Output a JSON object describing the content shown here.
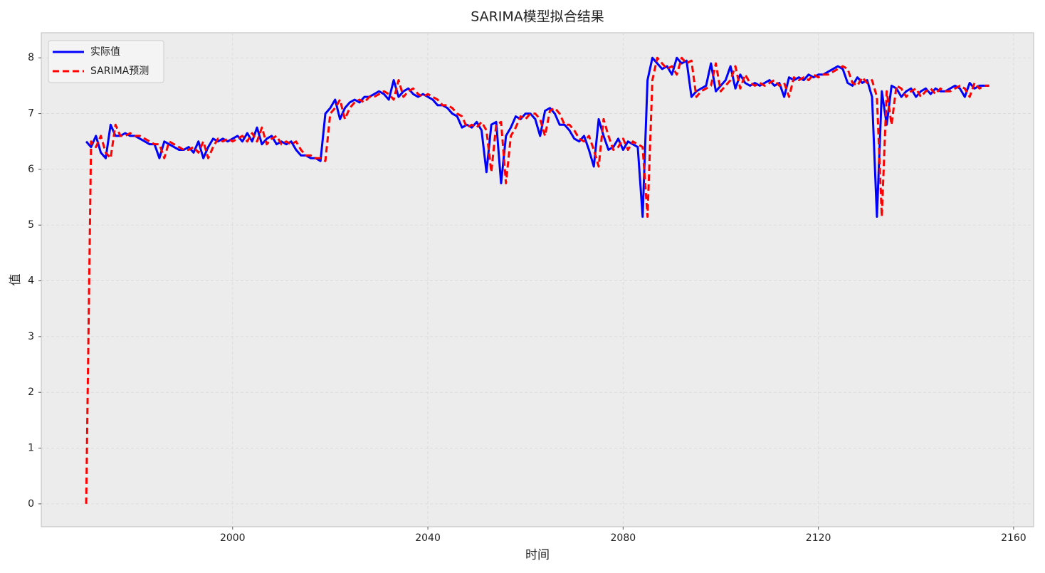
{
  "chart_data": {
    "type": "line",
    "title": "SARIMA模型拟合结果",
    "x_label": "时间",
    "y_label": "值",
    "x": [
      1970,
      1971,
      1972,
      1973,
      1974,
      1975,
      1976,
      1977,
      1978,
      1979,
      1980,
      1981,
      1982,
      1983,
      1984,
      1985,
      1986,
      1987,
      1988,
      1989,
      1990,
      1991,
      1992,
      1993,
      1994,
      1995,
      1996,
      1997,
      1998,
      1999,
      2000,
      2001,
      2002,
      2003,
      2004,
      2005,
      2006,
      2007,
      2008,
      2009,
      2010,
      2011,
      2012,
      2013,
      2014,
      2015,
      2016,
      2017,
      2018,
      2019,
      2020,
      2021,
      2022,
      2023,
      2024,
      2025,
      2026,
      2027,
      2028,
      2029,
      2030,
      2031,
      2032,
      2033,
      2034,
      2035,
      2036,
      2037,
      2038,
      2039,
      2040,
      2041,
      2042,
      2043,
      2044,
      2045,
      2046,
      2047,
      2048,
      2049,
      2050,
      2051,
      2052,
      2053,
      2054,
      2055,
      2056,
      2057,
      2058,
      2059,
      2060,
      2061,
      2062,
      2063,
      2064,
      2065,
      2066,
      2067,
      2068,
      2069,
      2070,
      2071,
      2072,
      2073,
      2074,
      2075,
      2076,
      2077,
      2078,
      2079,
      2080,
      2081,
      2082,
      2083,
      2084,
      2085,
      2086,
      2087,
      2088,
      2089,
      2090,
      2091,
      2092,
      2093,
      2094,
      2095,
      2096,
      2097,
      2098,
      2099,
      2100,
      2101,
      2102,
      2103,
      2104,
      2105,
      2106,
      2107,
      2108,
      2109,
      2110,
      2111,
      2112,
      2113,
      2114,
      2115,
      2116,
      2117,
      2118,
      2119,
      2120,
      2121,
      2122,
      2123,
      2124,
      2125,
      2126,
      2127,
      2128,
      2129,
      2130,
      2131,
      2132,
      2133,
      2134,
      2135,
      2136,
      2137,
      2138,
      2139,
      2140,
      2141,
      2142,
      2143,
      2144,
      2145,
      2146,
      2147,
      2148,
      2149,
      2150,
      2151,
      2152,
      2153,
      2154,
      2155
    ],
    "series": [
      {
        "name": "实际值",
        "color": "#0000ff",
        "dash": false,
        "values": [
          6.5,
          6.4,
          6.6,
          6.3,
          6.2,
          6.8,
          6.6,
          6.6,
          6.65,
          6.6,
          6.6,
          6.55,
          6.5,
          6.45,
          6.45,
          6.2,
          6.5,
          6.45,
          6.4,
          6.35,
          6.35,
          6.4,
          6.3,
          6.5,
          6.2,
          6.4,
          6.55,
          6.5,
          6.55,
          6.5,
          6.55,
          6.6,
          6.5,
          6.65,
          6.5,
          6.75,
          6.45,
          6.55,
          6.6,
          6.45,
          6.5,
          6.45,
          6.5,
          6.35,
          6.25,
          6.25,
          6.2,
          6.2,
          6.15,
          7.0,
          7.1,
          7.25,
          6.9,
          7.1,
          7.2,
          7.25,
          7.2,
          7.3,
          7.3,
          7.35,
          7.4,
          7.35,
          7.25,
          7.6,
          7.3,
          7.4,
          7.45,
          7.35,
          7.3,
          7.35,
          7.3,
          7.25,
          7.15,
          7.15,
          7.1,
          7.0,
          6.95,
          6.75,
          6.8,
          6.75,
          6.85,
          6.7,
          5.95,
          6.8,
          6.85,
          5.75,
          6.6,
          6.75,
          6.95,
          6.9,
          7.0,
          7.0,
          6.9,
          6.6,
          7.05,
          7.1,
          7.0,
          6.8,
          6.8,
          6.7,
          6.55,
          6.5,
          6.6,
          6.35,
          6.05,
          6.9,
          6.6,
          6.35,
          6.4,
          6.55,
          6.35,
          6.5,
          6.45,
          6.4,
          5.15,
          7.6,
          8.0,
          7.9,
          7.8,
          7.85,
          7.7,
          8.0,
          7.9,
          7.95,
          7.3,
          7.4,
          7.45,
          7.5,
          7.9,
          7.4,
          7.5,
          7.6,
          7.85,
          7.45,
          7.7,
          7.55,
          7.5,
          7.55,
          7.5,
          7.55,
          7.6,
          7.5,
          7.55,
          7.3,
          7.65,
          7.6,
          7.65,
          7.6,
          7.7,
          7.65,
          7.7,
          7.7,
          7.75,
          7.8,
          7.85,
          7.8,
          7.55,
          7.5,
          7.65,
          7.55,
          7.6,
          7.3,
          5.15,
          7.4,
          6.8,
          7.5,
          7.45,
          7.3,
          7.4,
          7.45,
          7.3,
          7.4,
          7.45,
          7.35,
          7.45,
          7.4,
          7.4,
          7.45,
          7.5,
          7.45,
          7.3,
          7.55,
          7.45,
          7.5,
          7.5,
          7.5
        ]
      },
      {
        "name": "SARIMA预测",
        "color": "#ff0000",
        "dash": true,
        "values": [
          0,
          6.5,
          6.4,
          6.6,
          6.3,
          6.2,
          6.8,
          6.6,
          6.6,
          6.65,
          6.6,
          6.6,
          6.55,
          6.5,
          6.45,
          6.45,
          6.2,
          6.5,
          6.45,
          6.4,
          6.35,
          6.35,
          6.4,
          6.3,
          6.5,
          6.2,
          6.4,
          6.55,
          6.5,
          6.55,
          6.5,
          6.55,
          6.6,
          6.5,
          6.65,
          6.5,
          6.75,
          6.45,
          6.55,
          6.6,
          6.45,
          6.5,
          6.45,
          6.5,
          6.35,
          6.25,
          6.25,
          6.2,
          6.2,
          6.15,
          7.0,
          7.1,
          7.25,
          6.9,
          7.1,
          7.2,
          7.25,
          7.2,
          7.3,
          7.3,
          7.35,
          7.4,
          7.35,
          7.25,
          7.6,
          7.3,
          7.4,
          7.45,
          7.35,
          7.3,
          7.35,
          7.3,
          7.25,
          7.15,
          7.15,
          7.1,
          7.0,
          6.95,
          6.75,
          6.8,
          6.75,
          6.85,
          6.7,
          5.95,
          6.8,
          6.85,
          5.75,
          6.6,
          6.75,
          6.95,
          6.9,
          7.0,
          7.0,
          6.9,
          6.6,
          7.05,
          7.1,
          7.0,
          6.8,
          6.8,
          6.7,
          6.55,
          6.5,
          6.6,
          6.35,
          6.05,
          6.9,
          6.6,
          6.35,
          6.4,
          6.55,
          6.35,
          6.5,
          6.45,
          6.4,
          5.15,
          7.6,
          8.0,
          7.9,
          7.8,
          7.85,
          7.7,
          8.0,
          7.9,
          7.95,
          7.3,
          7.4,
          7.45,
          7.5,
          7.9,
          7.4,
          7.5,
          7.6,
          7.85,
          7.45,
          7.7,
          7.55,
          7.5,
          7.55,
          7.5,
          7.55,
          7.6,
          7.5,
          7.55,
          7.3,
          7.65,
          7.6,
          7.65,
          7.6,
          7.7,
          7.65,
          7.7,
          7.7,
          7.75,
          7.8,
          7.85,
          7.8,
          7.55,
          7.5,
          7.65,
          7.55,
          7.6,
          7.3,
          5.15,
          7.4,
          6.8,
          7.5,
          7.45,
          7.3,
          7.4,
          7.45,
          7.3,
          7.4,
          7.45,
          7.35,
          7.45,
          7.4,
          7.4,
          7.45,
          7.5,
          7.45,
          7.3,
          7.55,
          7.45,
          7.5,
          7.5
        ]
      }
    ],
    "xlim": [
      1960.8,
      2164.1
    ],
    "ylim": [
      -0.41,
      8.45
    ],
    "xticks": [
      2000,
      2040,
      2080,
      2120,
      2160
    ],
    "yticks": [
      0,
      1,
      2,
      3,
      4,
      5,
      6,
      7,
      8
    ],
    "grid": true,
    "legend": "upper left"
  }
}
